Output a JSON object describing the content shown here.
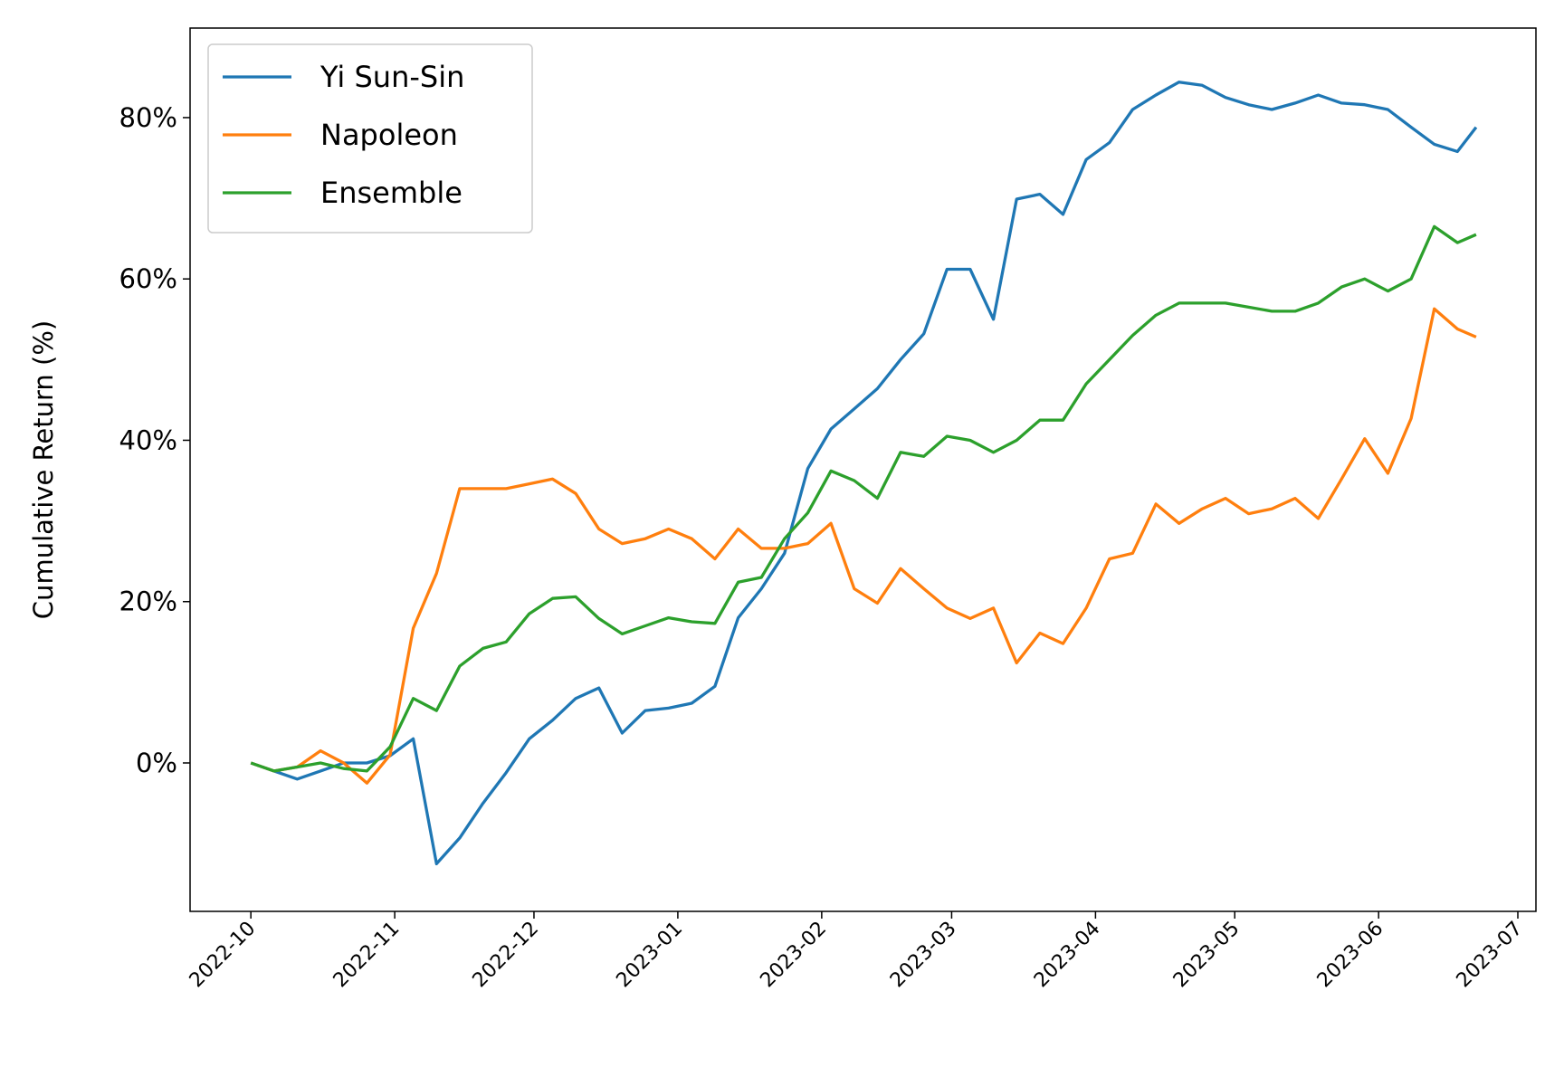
{
  "chart_data": {
    "type": "line",
    "y_label": "Cumulative Return (%)",
    "x": [
      0,
      5,
      10,
      15,
      20,
      25,
      30,
      35,
      40,
      45,
      50,
      55,
      60,
      65,
      70,
      75,
      80,
      85,
      90,
      95,
      100,
      105,
      110,
      115,
      120,
      125,
      130,
      135,
      140,
      145,
      150,
      155,
      160,
      165,
      170,
      175,
      180,
      185,
      190,
      195,
      200,
      205,
      210,
      215,
      220,
      225,
      230,
      235,
      240,
      245,
      250,
      255,
      260,
      264
    ],
    "series": [
      {
        "name": "Yi Sun-Sin",
        "color": "#1f77b4",
        "values": [
          0,
          -1,
          -2,
          -1,
          0,
          0,
          0.9,
          3,
          -12.5,
          -9.3,
          -5,
          -1.2,
          3,
          5.3,
          8,
          9.3,
          3.7,
          6.5,
          6.8,
          7.4,
          9.5,
          18,
          21.6,
          26,
          36.5,
          41.4,
          43.9,
          46.4,
          50,
          53.2,
          61.2,
          61.2,
          55,
          69.9,
          70.5,
          68,
          74.8,
          76.9,
          81,
          82.8,
          84.4,
          84,
          82.5,
          81.6,
          81,
          81.8,
          82.8,
          81.8,
          81.6,
          81,
          78.8,
          76.7,
          75.8,
          78.8
        ]
      },
      {
        "name": "Napoleon",
        "color": "#ff7f0e",
        "values": [
          0,
          -1,
          -0.5,
          1.5,
          0,
          -2.5,
          1,
          16.7,
          23.5,
          34,
          34,
          34,
          34.6,
          35.2,
          33.4,
          29,
          27.2,
          27.8,
          29,
          27.8,
          25.3,
          29,
          26.6,
          26.6,
          27.2,
          29.7,
          21.6,
          19.8,
          24.1,
          21.6,
          19.2,
          17.9,
          19.2,
          12.4,
          16.1,
          14.8,
          19.2,
          25.3,
          26,
          32.1,
          29.7,
          31.5,
          32.8,
          30.9,
          31.5,
          32.8,
          30.3,
          35.2,
          40.2,
          35.9,
          42.7,
          56.3,
          53.8,
          52.8
        ]
      },
      {
        "name": "Ensemble",
        "color": "#2ca02c",
        "values": [
          0,
          -1,
          -0.5,
          0,
          -0.7,
          -1,
          2,
          8,
          6.5,
          12,
          14.2,
          15,
          18.5,
          20.4,
          20.6,
          17.9,
          16,
          17,
          18,
          17.5,
          17.3,
          22.4,
          23,
          27.8,
          31,
          36.2,
          35,
          32.8,
          38.5,
          38,
          40.5,
          40,
          38.5,
          40,
          42.5,
          42.5,
          47,
          50,
          53,
          55.5,
          57,
          57,
          57,
          56.5,
          56,
          56,
          57,
          59,
          60,
          58.5,
          60,
          66.5,
          64.5,
          65.5
        ]
      }
    ],
    "xlim": [
      -13.1,
      276.9
    ],
    "xticks": [
      {
        "value": 0,
        "label": "2022-10"
      },
      {
        "value": 31,
        "label": "2022-11"
      },
      {
        "value": 61,
        "label": "2022-12"
      },
      {
        "value": 92,
        "label": "2023-01"
      },
      {
        "value": 123,
        "label": "2023-02"
      },
      {
        "value": 151,
        "label": "2023-03"
      },
      {
        "value": 182,
        "label": "2023-04"
      },
      {
        "value": 212,
        "label": "2023-05"
      },
      {
        "value": 243,
        "label": "2023-06"
      },
      {
        "value": 273,
        "label": "2023-07"
      }
    ],
    "ylim": [
      -18.4,
      91.1
    ],
    "yticks": [
      {
        "value": 0,
        "label": "0%"
      },
      {
        "value": 20,
        "label": "20%"
      },
      {
        "value": 40,
        "label": "40%"
      },
      {
        "value": 60,
        "label": "60%"
      },
      {
        "value": 80,
        "label": "80%"
      }
    ],
    "legend": "upper left",
    "grid": false
  }
}
